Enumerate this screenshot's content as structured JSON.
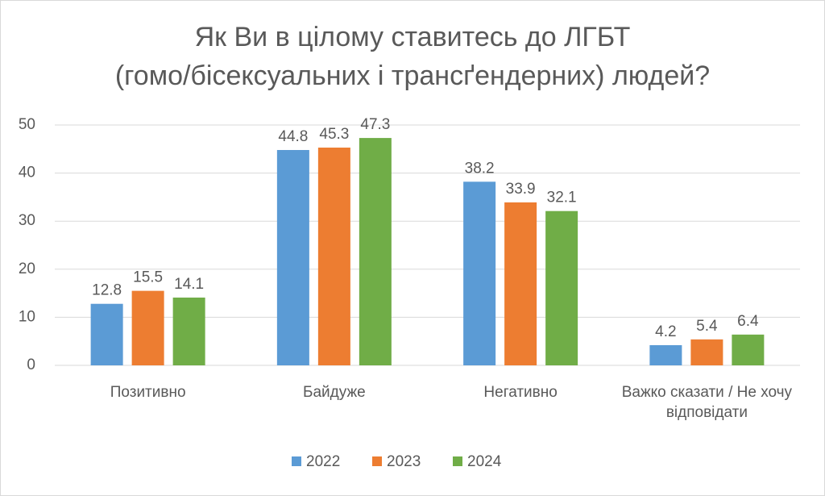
{
  "chart_data": {
    "type": "bar",
    "title": [
      "Як Ви в цілому ставитесь до ЛГБТ",
      "(гомо/бісексуальних і трансґендерних) людей?"
    ],
    "categories": [
      "Позитивно",
      "Байдуже",
      "Негативно",
      "Важко сказати / Не хочу відповідати"
    ],
    "series": [
      {
        "name": "2022",
        "color": "#5b9bd5",
        "values": [
          12.8,
          44.8,
          38.2,
          4.2
        ]
      },
      {
        "name": "2023",
        "color": "#ed7d31",
        "values": [
          15.5,
          45.3,
          33.9,
          5.4
        ]
      },
      {
        "name": "2024",
        "color": "#70ad47",
        "values": [
          14.1,
          47.3,
          32.1,
          6.4
        ]
      }
    ],
    "ylim": [
      0,
      50
    ],
    "yticks": [
      0,
      10,
      20,
      30,
      40,
      50
    ],
    "grid": true,
    "legend": "bottom"
  }
}
